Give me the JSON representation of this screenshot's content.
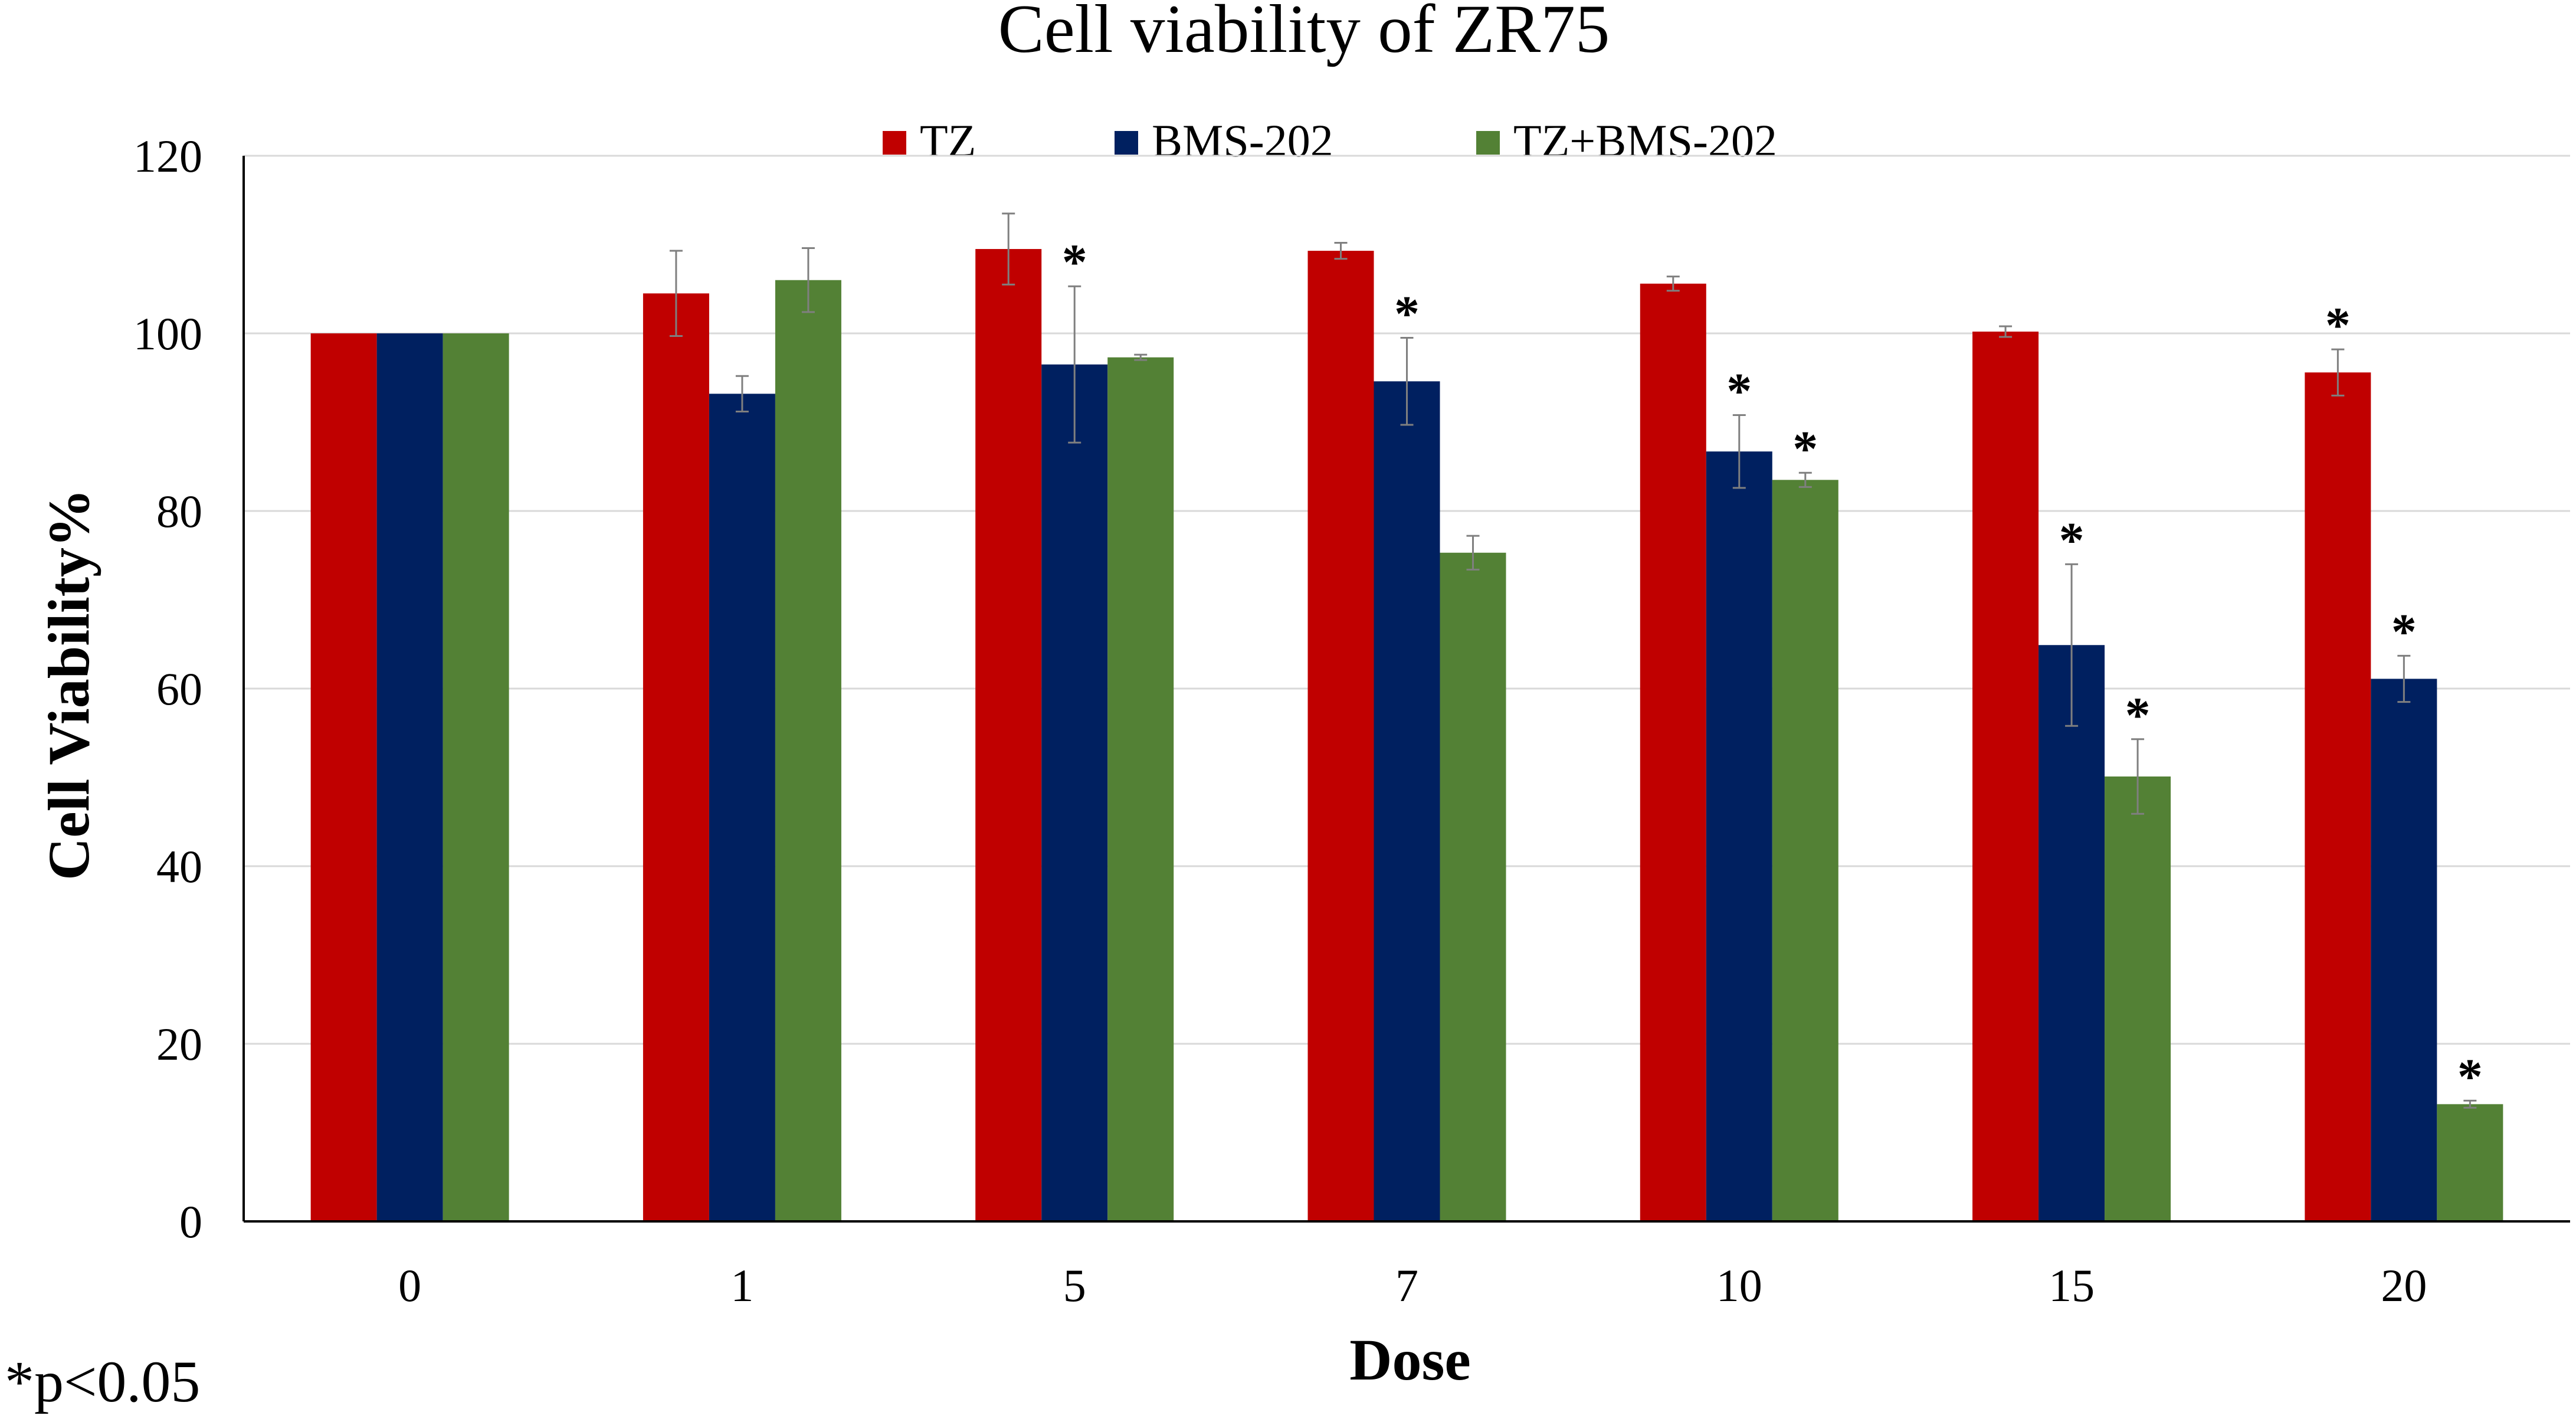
{
  "chart_data": {
    "type": "bar",
    "title": "Cell viability of ZR75",
    "xlabel": "Dose",
    "ylabel": "Cell Viability%",
    "ylim": [
      0,
      120
    ],
    "yticks": [
      "0",
      "20",
      "40",
      "60",
      "80",
      "100",
      "120"
    ],
    "ytick_values": [
      0,
      20,
      40,
      60,
      80,
      100,
      120
    ],
    "grid": true,
    "legend_position": "top",
    "categories": [
      "0",
      "1",
      "5",
      "7",
      "10",
      "15",
      "20"
    ],
    "series": [
      {
        "name": "TZ",
        "color": "#C00000",
        "values": [
          100,
          104.5,
          109.5,
          109.3,
          105.6,
          100.2,
          95.6
        ],
        "errors": [
          0,
          4.8,
          4.0,
          0.9,
          0.8,
          0.6,
          2.6
        ],
        "significant": [
          false,
          false,
          false,
          false,
          false,
          false,
          true
        ]
      },
      {
        "name": "BMS-202",
        "color": "#002060",
        "values": [
          100,
          93.2,
          96.5,
          94.6,
          86.7,
          64.9,
          61.1
        ],
        "errors": [
          0,
          2.0,
          8.8,
          4.9,
          4.1,
          9.1,
          2.6
        ],
        "significant": [
          false,
          false,
          true,
          true,
          true,
          true,
          true
        ]
      },
      {
        "name": "TZ+BMS-202",
        "color": "#538135",
        "values": [
          100,
          106.0,
          97.3,
          75.3,
          83.5,
          50.1,
          13.2
        ],
        "errors": [
          0,
          3.6,
          0.3,
          1.9,
          0.8,
          4.2,
          0.4
        ],
        "significant": [
          false,
          false,
          false,
          false,
          true,
          true,
          true
        ]
      }
    ],
    "significance_marker": "*",
    "footnote": "*p<0.05"
  }
}
